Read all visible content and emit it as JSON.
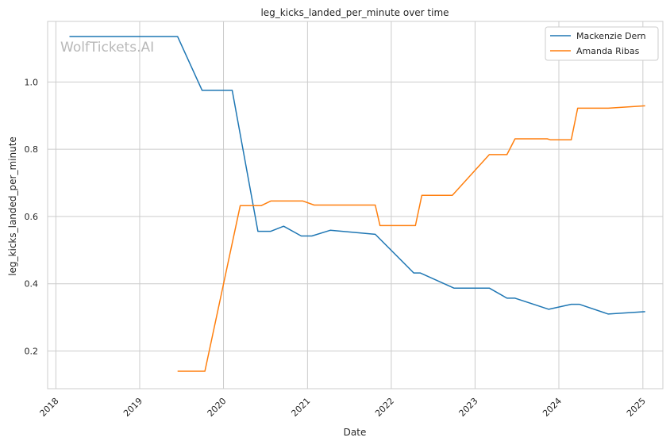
{
  "chart_data": {
    "type": "line",
    "title": "leg_kicks_landed_per_minute over time",
    "xlabel": "Date",
    "ylabel": "leg_kicks_landed_per_minute",
    "watermark": "WolfTickets.AI",
    "x_ticks": [
      "2018",
      "2019",
      "2020",
      "2021",
      "2022",
      "2023",
      "2024",
      "2025"
    ],
    "y_ticks": [
      "0.2",
      "0.4",
      "0.6",
      "0.8",
      "1.0"
    ],
    "xlim": [
      "2017-11-26",
      "2025-03-29"
    ],
    "ylim": [
      0.088,
      1.18
    ],
    "grid": true,
    "legend_position": "top-right",
    "series": [
      {
        "name": "Mackenzie Dern",
        "color": "#1f77b4",
        "points": [
          [
            "2018-03-01",
            1.135
          ],
          [
            "2019-06-15",
            1.135
          ],
          [
            "2019-09-30",
            0.975
          ],
          [
            "2020-02-08",
            0.975
          ],
          [
            "2020-05-30",
            0.556
          ],
          [
            "2020-07-25",
            0.556
          ],
          [
            "2020-09-19",
            0.571
          ],
          [
            "2020-12-05",
            0.542
          ],
          [
            "2021-01-20",
            0.542
          ],
          [
            "2021-04-10",
            0.559
          ],
          [
            "2021-10-23",
            0.547
          ],
          [
            "2022-04-09",
            0.432
          ],
          [
            "2022-05-07",
            0.432
          ],
          [
            "2022-10-01",
            0.387
          ],
          [
            "2023-03-04",
            0.387
          ],
          [
            "2023-05-20",
            0.357
          ],
          [
            "2023-06-24",
            0.357
          ],
          [
            "2023-11-18",
            0.324
          ],
          [
            "2024-02-24",
            0.339
          ],
          [
            "2024-03-30",
            0.339
          ],
          [
            "2024-08-03",
            0.31
          ],
          [
            "2025-01-11",
            0.317
          ]
        ]
      },
      {
        "name": "Amanda Ribas",
        "color": "#ff7f0e",
        "points": [
          [
            "2019-06-15",
            0.14
          ],
          [
            "2019-10-12",
            0.14
          ],
          [
            "2020-03-14",
            0.632
          ],
          [
            "2020-06-13",
            0.632
          ],
          [
            "2020-07-25",
            0.646
          ],
          [
            "2020-12-12",
            0.646
          ],
          [
            "2021-01-30",
            0.634
          ],
          [
            "2021-10-23",
            0.634
          ],
          [
            "2021-11-13",
            0.573
          ],
          [
            "2022-04-16",
            0.573
          ],
          [
            "2022-05-14",
            0.663
          ],
          [
            "2022-09-24",
            0.663
          ],
          [
            "2023-03-04",
            0.784
          ],
          [
            "2023-05-20",
            0.784
          ],
          [
            "2023-06-24",
            0.831
          ],
          [
            "2023-11-11",
            0.831
          ],
          [
            "2023-11-25",
            0.828
          ],
          [
            "2024-02-24",
            0.828
          ],
          [
            "2024-03-23",
            0.922
          ],
          [
            "2024-08-03",
            0.922
          ],
          [
            "2025-01-11",
            0.929
          ]
        ]
      }
    ]
  }
}
